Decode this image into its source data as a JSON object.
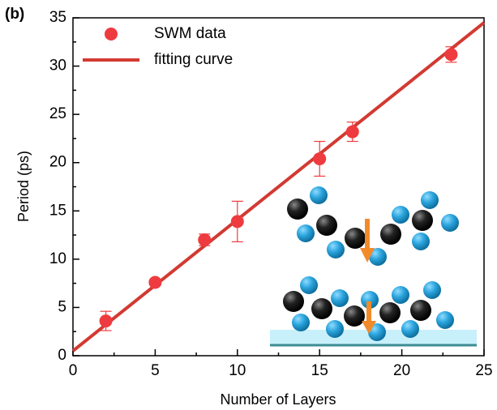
{
  "chart_data": {
    "type": "scatter",
    "panel_label": "(b)",
    "x_label": "Number of Layers",
    "y_label": "Period (ps)",
    "xlim": [
      0,
      25
    ],
    "ylim": [
      0,
      35
    ],
    "xticks": [
      0,
      5,
      10,
      15,
      20,
      25
    ],
    "yticks": [
      0,
      5,
      10,
      15,
      20,
      25,
      30,
      35
    ],
    "x_minor_ticks": [
      2.5,
      7.5,
      12.5,
      17.5,
      22.5
    ],
    "y_minor_ticks": [
      2.5,
      7.5,
      12.5,
      17.5,
      22.5,
      27.5,
      32.5
    ],
    "legend_position": "upper left",
    "series": [
      {
        "name": "SWM data",
        "type": "scatter",
        "color": "#ee3b3f",
        "x": [
          2,
          5,
          8,
          10,
          15,
          17,
          23
        ],
        "values": [
          3.6,
          7.6,
          12.0,
          13.9,
          20.4,
          23.2,
          31.2
        ],
        "errors": [
          1.0,
          0.3,
          0.6,
          2.1,
          1.8,
          1.0,
          0.8
        ]
      },
      {
        "name": "fitting curve",
        "type": "line",
        "color": "#d23a32",
        "x": [
          0,
          25
        ],
        "values": [
          0.5,
          34.5
        ]
      }
    ]
  }
}
